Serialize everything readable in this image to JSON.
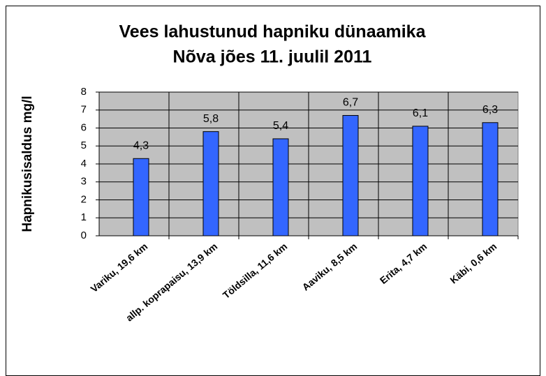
{
  "chart_data": {
    "type": "bar",
    "title": [
      "Vees lahustunud hapniku dünaamika",
      "Nõva jões 11. juulil 2011"
    ],
    "y_label": "Hapnikusisaldus  mg/l",
    "categories": [
      "Variku, 19,6 km",
      "allp. koprapaisu, 13,9 km",
      "Töldsilla, 11,6 km",
      "Aaviku, 8,5 km",
      "Erita, 4,7 km",
      "Käbi, 0,6 km"
    ],
    "values": [
      4.3,
      5.8,
      5.4,
      6.7,
      6.1,
      6.3
    ],
    "value_labels": [
      "4,3",
      "5,8",
      "5,4",
      "6,7",
      "6,1",
      "6,3"
    ],
    "color": "#3366ff",
    "ylim": [
      0,
      8
    ],
    "yticks": [
      0,
      1,
      2,
      3,
      4,
      5,
      6,
      7,
      8
    ],
    "grid": true
  }
}
